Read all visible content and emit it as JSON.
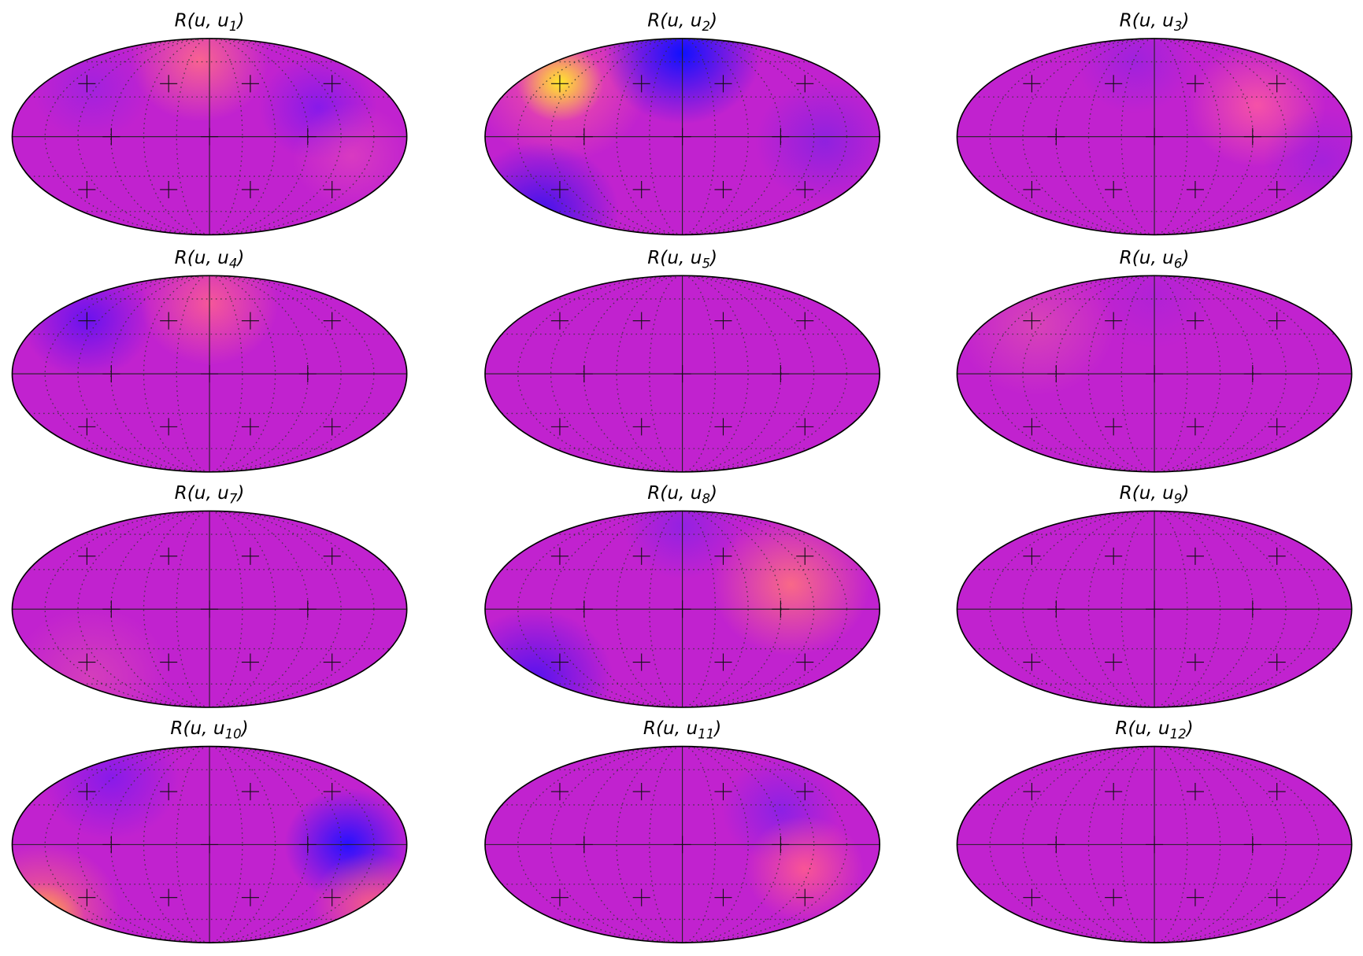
{
  "panels": [
    {
      "title_prefix": "R(u, u",
      "title_sub": "1",
      "title_suffix": ")"
    },
    {
      "title_prefix": "R(u, u",
      "title_sub": "2",
      "title_suffix": ")"
    },
    {
      "title_prefix": "R(u, u",
      "title_sub": "3",
      "title_suffix": ")"
    },
    {
      "title_prefix": "R(u, u",
      "title_sub": "4",
      "title_suffix": ")"
    },
    {
      "title_prefix": "R(u, u",
      "title_sub": "5",
      "title_suffix": ")"
    },
    {
      "title_prefix": "R(u, u",
      "title_sub": "6",
      "title_suffix": ")"
    },
    {
      "title_prefix": "R(u, u",
      "title_sub": "7",
      "title_suffix": ")"
    },
    {
      "title_prefix": "R(u, u",
      "title_sub": "8",
      "title_suffix": ")"
    },
    {
      "title_prefix": "R(u, u",
      "title_sub": "9",
      "title_suffix": ")"
    },
    {
      "title_prefix": "R(u, u",
      "title_sub": "10",
      "title_suffix": ")"
    },
    {
      "title_prefix": "R(u, u",
      "title_sub": "11",
      "title_suffix": ")"
    },
    {
      "title_prefix": "R(u, u",
      "title_sub": "12",
      "title_suffix": ")"
    }
  ]
}
